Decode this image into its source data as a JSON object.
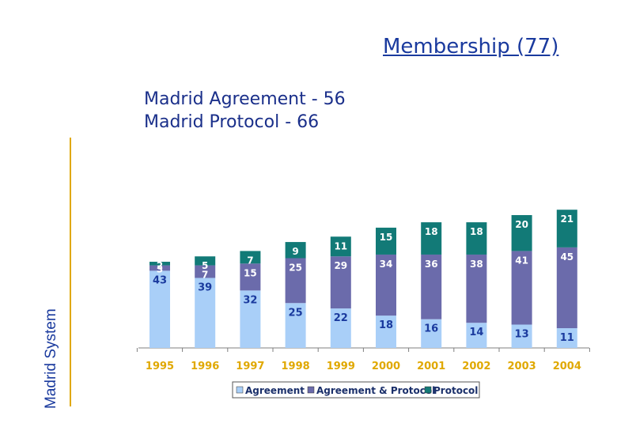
{
  "title": "Membership (77)",
  "subtitle_lines": [
    "Madrid Agreement - 56",
    "Madrid Protocol - 66"
  ],
  "side_label": "Madrid System",
  "colors": {
    "agreement": "#a9cff8",
    "agreement_protocol": "#6b6bab",
    "protocol": "#127a77",
    "year_label": "#e0a800",
    "agreement_label": "#1a3a9e",
    "inner_label": "#ffffff",
    "axis": "#7f7f7f"
  },
  "chart_data": {
    "type": "bar",
    "stacked": true,
    "categories": [
      "1995",
      "1996",
      "1997",
      "1998",
      "1999",
      "2000",
      "2001",
      "2002",
      "2003",
      "2004"
    ],
    "series": [
      {
        "name": "Agreement",
        "values": [
          43,
          39,
          32,
          25,
          22,
          18,
          16,
          14,
          13,
          11
        ]
      },
      {
        "name": "Agreement & Protocol",
        "values": [
          3,
          7,
          15,
          25,
          29,
          34,
          36,
          38,
          41,
          45
        ]
      },
      {
        "name": "Protocol",
        "values": [
          2,
          5,
          7,
          9,
          11,
          15,
          18,
          18,
          20,
          21
        ]
      }
    ],
    "title": "Membership (77)",
    "xlabel": "",
    "ylabel": "Madrid System",
    "ylim": [
      0,
      77
    ],
    "legend": "bottom"
  }
}
